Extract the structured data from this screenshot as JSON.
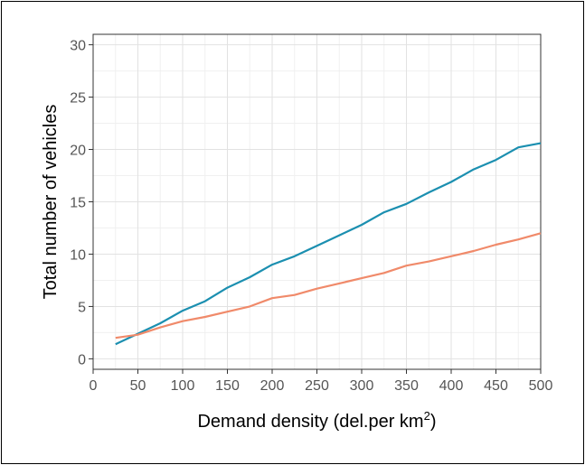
{
  "chart_data": {
    "type": "line",
    "title": "",
    "xlabel": "Demand density (del.per km",
    "xlabel_superscript": "2",
    "xlabel_suffix": ")",
    "ylabel": "Total number of vehicles",
    "xlim": [
      0,
      500
    ],
    "ylim": [
      -1,
      31
    ],
    "x_ticks": [
      "0",
      "50",
      "100",
      "150",
      "200",
      "250",
      "300",
      "350",
      "400",
      "450",
      "500"
    ],
    "y_ticks": [
      "0",
      "5",
      "10",
      "15",
      "20",
      "25",
      "30"
    ],
    "grid": true,
    "legend": "none",
    "x": [
      25,
      50,
      75,
      100,
      125,
      150,
      175,
      200,
      225,
      250,
      275,
      300,
      325,
      350,
      375,
      400,
      425,
      450,
      475,
      500
    ],
    "series": [
      {
        "color": "#1b8fb0",
        "values": [
          1.4,
          2.4,
          3.4,
          4.6,
          5.5,
          6.8,
          7.8,
          9.0,
          9.8,
          10.8,
          11.8,
          12.8,
          14.0,
          14.8,
          15.9,
          16.9,
          18.1,
          19.0,
          20.2,
          20.6
        ]
      },
      {
        "color": "#f08a6a",
        "values": [
          2.0,
          2.3,
          3.0,
          3.6,
          4.0,
          4.5,
          5.0,
          5.8,
          6.1,
          6.7,
          7.2,
          7.7,
          8.2,
          8.9,
          9.3,
          9.8,
          10.3,
          10.9,
          11.4,
          12.0
        ]
      }
    ]
  }
}
